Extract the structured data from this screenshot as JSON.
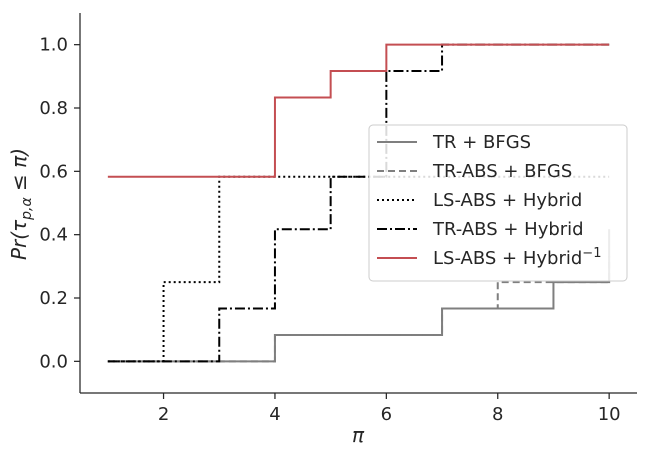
{
  "chart_data": {
    "type": "line",
    "step": "post",
    "xlabel": "π",
    "ylabel": "Pr(τp,α ≤ π)",
    "ylabel_parts": {
      "pre": "Pr(τ",
      "sub": "p,α",
      "post": " ≤ π)"
    },
    "xlim": [
      0.5,
      10.5
    ],
    "ylim": [
      -0.1,
      1.1
    ],
    "xticks": [
      2,
      4,
      6,
      8,
      10
    ],
    "yticks": [
      0.0,
      0.2,
      0.4,
      0.6,
      0.8,
      1.0
    ],
    "ytick_labels": [
      "0.0",
      "0.2",
      "0.4",
      "0.6",
      "0.8",
      "1.0"
    ],
    "legend_position": "center-right",
    "grid": false,
    "series": [
      {
        "name": "TR + BFGS",
        "color": "#7f7f7f",
        "dash": "solid",
        "x": [
          1,
          4,
          7,
          9,
          10
        ],
        "y": [
          0.0,
          0.083,
          0.167,
          0.25,
          0.417
        ]
      },
      {
        "name": "TR-ABS + BFGS",
        "color": "#7f7f7f",
        "dash": "dashed",
        "x": [
          1,
          4,
          7,
          8,
          10
        ],
        "y": [
          0.0,
          0.083,
          0.167,
          0.25,
          0.333
        ]
      },
      {
        "name": "LS-ABS + Hybrid",
        "color": "#000000",
        "dash": "dotted",
        "x": [
          1,
          2,
          3,
          5,
          10
        ],
        "y": [
          0.0,
          0.25,
          0.583,
          0.583,
          0.583
        ]
      },
      {
        "name": "TR-ABS + Hybrid",
        "color": "#000000",
        "dash": "dashdot",
        "x": [
          1,
          3,
          4,
          5,
          6,
          7,
          10
        ],
        "y": [
          0.0,
          0.167,
          0.417,
          0.583,
          0.917,
          1.0,
          1.0
        ]
      },
      {
        "name": "LS-ABS + Hybrid",
        "name_sup": "−1",
        "color": "#c44e52",
        "dash": "solid",
        "x": [
          1,
          4,
          5,
          6,
          10
        ],
        "y": [
          0.583,
          0.833,
          0.917,
          1.0,
          1.0
        ]
      }
    ]
  }
}
